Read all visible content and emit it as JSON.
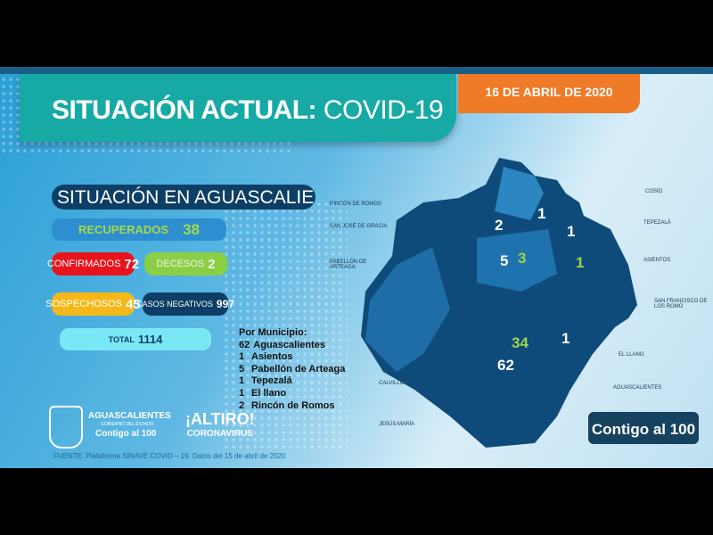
{
  "header": {
    "title_bold": "SITUACIÓN ACTUAL:",
    "title_light": " COVID-19",
    "date": "16 DE ABRIL DE 2020"
  },
  "subtitle": "SITUACIÓN EN AGUASCALIENTES",
  "stats": {
    "recuperados": {
      "label": "RECUPERADOS",
      "value": "38"
    },
    "confirmados": {
      "label": "CONFIRMADOS",
      "value": "72"
    },
    "decesos": {
      "label": "DECESOS",
      "value": "2"
    },
    "sospechosos": {
      "label": "SOSPECHOSOS",
      "value": "45"
    },
    "negativos": {
      "label": "CASOS NEGATIVOS",
      "value": "997"
    },
    "total": {
      "label": "TOTAL",
      "value": "1114"
    }
  },
  "por_municipio": {
    "title": "Por Municipio:",
    "items": [
      {
        "count": "62",
        "name": "Aguascalientes"
      },
      {
        "count": "1",
        "name": "Asientos"
      },
      {
        "count": "5",
        "name": "Pabellón de Arteaga"
      },
      {
        "count": "1",
        "name": "Tepezalá"
      },
      {
        "count": "1",
        "name": "El llano"
      },
      {
        "count": "2",
        "name": "Rincón de Romos"
      }
    ]
  },
  "map": {
    "labels": {
      "cosio": "COSÍO",
      "rincon": "RINCÓN DE ROMOS",
      "tepezala": "TEPEZALÁ",
      "sanjose": "SAN JOSÉ DE GRACIA",
      "asientos": "ASIENTOS",
      "pabellon": "PABELLÓN DE ARTEAGA",
      "sanfrancisco": "SAN FRANCISCO DE LOS ROMO",
      "llano": "EL LLANO",
      "aguascalientes": "AGUASCALIENTES",
      "calvillo": "CALVILLO",
      "jesusmaria": "JESÚS MARÍA"
    },
    "numbers": {
      "rincon": "2",
      "cosio": "1",
      "tepezala": "1",
      "pabellon": "5",
      "pabellon_green": "3",
      "asientos_green": "1",
      "ags_green": "34",
      "ags": "62",
      "llano": "1"
    },
    "colors": {
      "white_count": "#ffffff",
      "green_count": "#9bd44a"
    }
  },
  "logos": {
    "gov_name": "AGUASCALIENTES",
    "gov_sub": "GOBIERNO DEL ESTADO",
    "gov_slogan": "Contigo al 100",
    "altiro": "¡ALTIRO!",
    "coronavirus": "CORONAVIRUS",
    "contigo": "Contigo al 100"
  },
  "source": "FUENTE. Plataforma SINAVE COVID – 19. Datos del 15 de abril de 2020",
  "colors": {
    "title_bg": "#17aaa5",
    "date_bg": "#ef7a27",
    "confirmados": "#e8141b",
    "decesos": "#8bcf45",
    "sospechosos": "#f5b818",
    "negativos": "#0d3f66",
    "total": "#7ae7f5"
  }
}
